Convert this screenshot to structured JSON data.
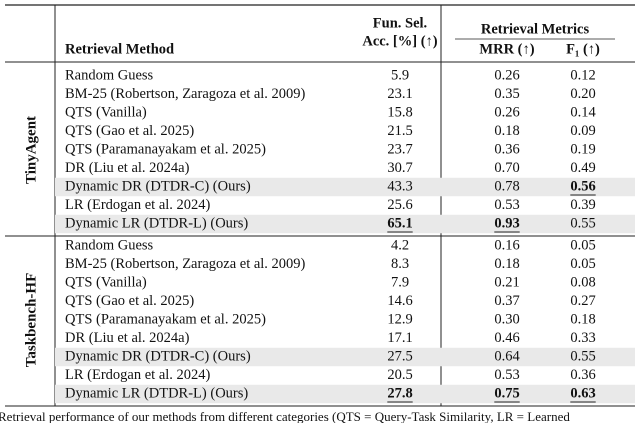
{
  "table": {
    "header": {
      "method": "Retrieval Method",
      "acc_line1": "Fun. Sel.",
      "acc_line2": "Acc. [%] (↑)",
      "metrics": "Retrieval Metrics",
      "mrr": "MRR (↑)",
      "f1": "F₁ (↑)"
    },
    "groups": [
      {
        "name": "TinyAgent",
        "rows": [
          [
            "Random Guess",
            "5.9",
            "0.26",
            "0.12"
          ],
          [
            "BM-25 (Robertson, Zaragoza et al. 2009)",
            "23.1",
            "0.35",
            "0.20"
          ],
          [
            "QTS (Vanilla)",
            "15.8",
            "0.26",
            "0.14"
          ],
          [
            "QTS (Gao et al. 2025)",
            "21.5",
            "0.18",
            "0.09"
          ],
          [
            "QTS (Paramanayakam et al. 2025)",
            "23.7",
            "0.36",
            "0.19"
          ],
          [
            "DR (Liu et al. 2024a)",
            "30.7",
            "0.70",
            "0.49"
          ],
          [
            "Dynamic DR (DTDR-C) (Ours)",
            "43.3",
            "0.78",
            "0.56"
          ],
          [
            "LR (Erdogan et al. 2024)",
            "25.6",
            "0.53",
            "0.39"
          ],
          [
            "Dynamic LR (DTDR-L) (Ours)",
            "65.1",
            "0.93",
            "0.55"
          ]
        ]
      },
      {
        "name": "Taskbench-HF",
        "rows": [
          [
            "Random Guess",
            "4.2",
            "0.16",
            "0.05"
          ],
          [
            "BM-25 (Robertson, Zaragoza et al. 2009)",
            "8.3",
            "0.18",
            "0.05"
          ],
          [
            "QTS (Vanilla)",
            "7.9",
            "0.21",
            "0.08"
          ],
          [
            "QTS (Gao et al. 2025)",
            "14.6",
            "0.37",
            "0.27"
          ],
          [
            "QTS (Paramanayakam et al. 2025)",
            "12.9",
            "0.30",
            "0.18"
          ],
          [
            "DR (Liu et al. 2024a)",
            "17.1",
            "0.46",
            "0.33"
          ],
          [
            "Dynamic DR (DTDR-C) (Ours)",
            "27.5",
            "0.64",
            "0.55"
          ],
          [
            "LR (Erdogan et al. 2024)",
            "20.5",
            "0.53",
            "0.36"
          ],
          [
            "Dynamic LR (DTDR-L) (Ours)",
            "27.8",
            "0.75",
            "0.63"
          ]
        ]
      }
    ],
    "caption": "Retrieval performance of our methods from different categories (QTS = Query-Task Similarity, LR = Learned"
  }
}
